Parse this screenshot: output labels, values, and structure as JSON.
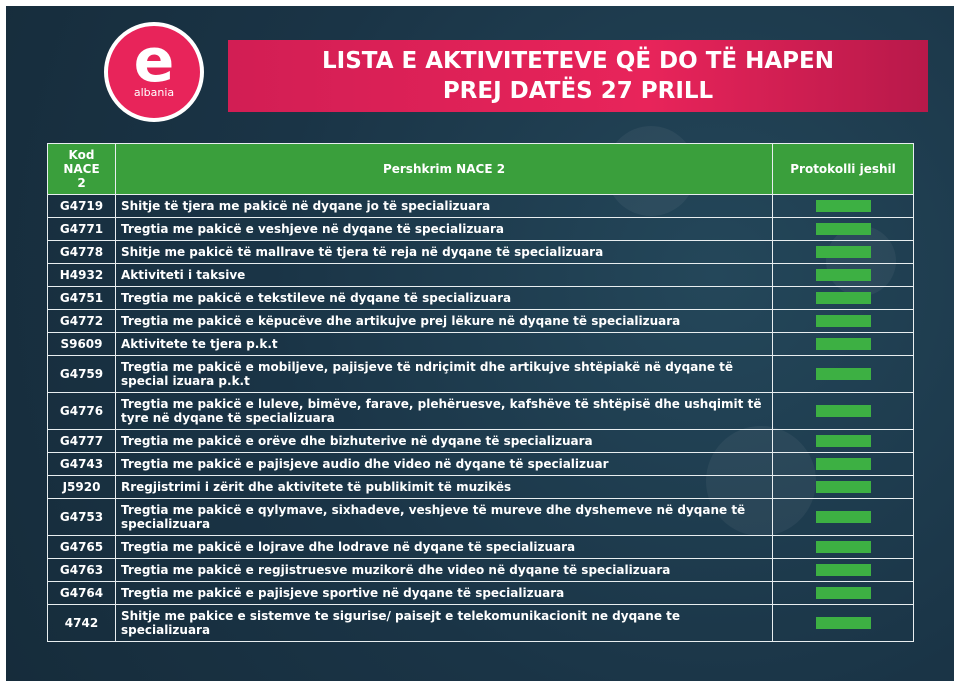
{
  "logo": {
    "letter": "e",
    "name": "albania"
  },
  "header": {
    "title": [
      "LISTA E AKTIVITETEVE QË DO TË HAPEN",
      "PREJ DATËS 27 PRILL"
    ]
  },
  "table": {
    "headers": [
      "Kod NACE 2",
      "Pershkrim NACE 2",
      "Protokolli jeshil"
    ],
    "rows": [
      [
        "G4719",
        "Shitje të tjera me pakicë në dyqane jo të specializuara"
      ],
      [
        "G4771",
        "Tregtia me pakicë e veshjeve në dyqane të specializuara"
      ],
      [
        "G4778",
        "Shitje me pakicë të mallrave të tjera të reja në dyqane të specializuara"
      ],
      [
        "H4932",
        "Aktiviteti i taksive"
      ],
      [
        "G4751",
        "Tregtia me pakicë e tekstileve në dyqane të specializuara"
      ],
      [
        "G4772",
        "Tregtia me pakicë e këpucëve dhe artikujve prej lëkure në dyqane të specializuara"
      ],
      [
        "S9609",
        "Aktivitete te tjera p.k.t"
      ],
      [
        "G4759",
        "Tregtia me pakicë e mobiljeve, pajisjeve të ndriçimit dhe artikujve shtëpiakë në dyqane të special izuara p.k.t"
      ],
      [
        "G4776",
        "Tregtia me pakicë e luleve, bimëve, farave, plehëruesve, kafshëve të shtëpisë dhe ushqimit të tyre në dyqane të specializuara"
      ],
      [
        "G4777",
        "Tregtia me pakicë e orëve dhe bizhuterive në dyqane të specializuara"
      ],
      [
        "G4743",
        "Tregtia me pakicë e pajisjeve audio dhe video në dyqane të specializuar"
      ],
      [
        "J5920",
        "Rregjistrimi i zërit dhe aktivitete të publikimit të muzikës"
      ],
      [
        "G4753",
        "Tregtia me pakicë e qylymave, sixhadeve, veshjeve të mureve dhe dyshemeve në dyqane të specializuara"
      ],
      [
        "G4765",
        "Tregtia me pakicë e lojrave dhe lodrave në dyqane të specializuara"
      ],
      [
        "G4763",
        "Tregtia me pakicë e regjistruesve muzikorë dhe video në dyqane të specializuara"
      ],
      [
        "G4764",
        "Tregtia me pakicë e pajisjeve sportive në dyqane të specializuara"
      ],
      [
        "4742",
        "Shitje me pakice e sistemve te sigurise/ paisejt e telekomunikacionit ne dyqane te specializuara"
      ]
    ]
  }
}
